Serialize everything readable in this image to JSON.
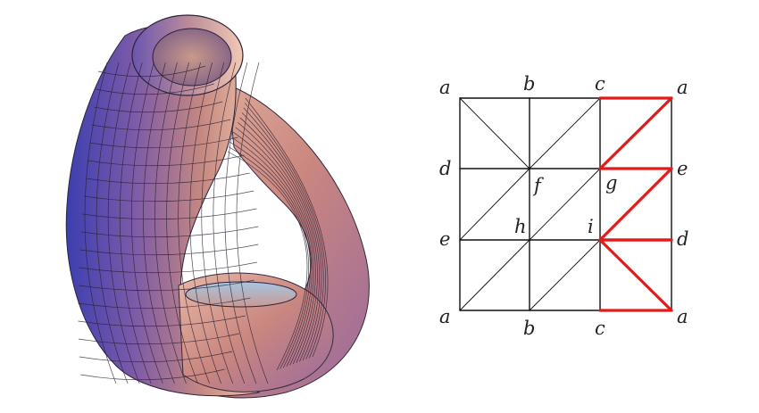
{
  "figure": {
    "colors": {
      "grid_line": "#111111",
      "highlight": "#e11b1b",
      "surface_light": "#f2c9b4",
      "surface_mid": "#c98680",
      "surface_dark": "#6a55b0",
      "surface_blue": "#3c3fb0"
    },
    "surface_name": "klein-bottle",
    "vertex_labels": {
      "top_left": "a",
      "top_b": "b",
      "top_c": "c",
      "top_right": "a",
      "mid_left_d": "d",
      "mid_f": "f",
      "mid_g": "g",
      "mid_right_e": "e",
      "low_left_e": "e",
      "low_h": "h",
      "low_i": "i",
      "low_right_d": "d",
      "bottom_left": "a",
      "bottom_b": "b",
      "bottom_c": "c",
      "bottom_right": "a"
    }
  }
}
